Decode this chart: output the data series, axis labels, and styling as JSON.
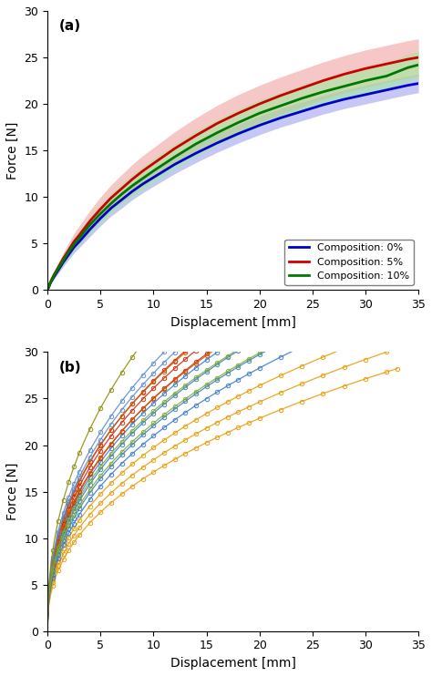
{
  "title_a": "(a)",
  "title_b": "(b)",
  "xlabel": "Displacement [mm]",
  "ylabel": "Force [N]",
  "xlim": [
    0,
    35
  ],
  "ylim": [
    0,
    30
  ],
  "xticks": [
    0,
    5,
    10,
    15,
    20,
    25,
    30,
    35
  ],
  "yticks": [
    0,
    5,
    10,
    15,
    20,
    25,
    30
  ],
  "legend_labels": [
    "Composition: 0%",
    "Composition: 5%",
    "Composition: 10%"
  ],
  "mean_colors": [
    "#0000cc",
    "#cc0000",
    "#007700"
  ],
  "fill_colors": [
    "#9999ee",
    "#ee9999",
    "#99ee99"
  ],
  "curve_a": {
    "x": [
      0,
      0.3,
      0.6,
      1.0,
      1.5,
      2.0,
      2.5,
      3.0,
      4.0,
      5.0,
      6.0,
      7.0,
      8.0,
      9.0,
      10.0,
      12.0,
      14.0,
      16.0,
      18.0,
      20.0,
      22.0,
      24.0,
      26.0,
      28.0,
      30.0,
      32.0,
      34.0,
      35.0
    ],
    "mean_0": [
      0,
      0.8,
      1.4,
      2.1,
      3.0,
      3.8,
      4.6,
      5.2,
      6.5,
      7.7,
      8.8,
      9.7,
      10.6,
      11.4,
      12.1,
      13.5,
      14.7,
      15.8,
      16.8,
      17.7,
      18.5,
      19.2,
      19.9,
      20.5,
      21.0,
      21.5,
      22.0,
      22.2
    ],
    "std_0": [
      0,
      0.15,
      0.25,
      0.35,
      0.45,
      0.55,
      0.6,
      0.65,
      0.75,
      0.8,
      0.85,
      0.9,
      0.9,
      0.95,
      0.95,
      1.0,
      1.0,
      1.0,
      1.0,
      1.0,
      1.0,
      1.0,
      1.0,
      1.0,
      1.0,
      1.0,
      1.0,
      1.0
    ],
    "mean_5": [
      0,
      0.9,
      1.6,
      2.4,
      3.4,
      4.3,
      5.2,
      5.9,
      7.4,
      8.7,
      9.9,
      10.9,
      11.9,
      12.8,
      13.6,
      15.2,
      16.6,
      17.9,
      19.0,
      20.0,
      20.9,
      21.7,
      22.5,
      23.2,
      23.8,
      24.3,
      24.8,
      25.0
    ],
    "std_5": [
      0,
      0.2,
      0.35,
      0.5,
      0.65,
      0.8,
      0.9,
      1.0,
      1.15,
      1.3,
      1.4,
      1.5,
      1.6,
      1.65,
      1.7,
      1.8,
      1.9,
      1.95,
      2.0,
      2.0,
      2.0,
      2.0,
      2.0,
      2.0,
      2.0,
      2.0,
      2.0,
      2.0
    ],
    "mean_10": [
      0,
      0.85,
      1.55,
      2.3,
      3.2,
      4.1,
      4.9,
      5.6,
      7.0,
      8.2,
      9.3,
      10.3,
      11.2,
      12.0,
      12.8,
      14.3,
      15.7,
      16.9,
      18.0,
      19.0,
      19.8,
      20.6,
      21.3,
      21.9,
      22.5,
      23.0,
      23.9,
      24.2
    ],
    "std_10": [
      0,
      0.15,
      0.3,
      0.4,
      0.55,
      0.65,
      0.75,
      0.8,
      0.95,
      1.05,
      1.1,
      1.15,
      1.2,
      1.25,
      1.3,
      1.35,
      1.4,
      1.4,
      1.45,
      1.45,
      1.45,
      1.45,
      1.45,
      1.45,
      1.45,
      1.45,
      1.45,
      1.45
    ]
  },
  "individual_curves": [
    {
      "color": "#e69900",
      "a": 6.5,
      "b": 0.42,
      "xmax": 33
    },
    {
      "color": "#e69900",
      "a": 7.0,
      "b": 0.42,
      "xmax": 33
    },
    {
      "color": "#e69900",
      "a": 7.5,
      "b": 0.42,
      "xmax": 33
    },
    {
      "color": "#3377cc",
      "a": 7.8,
      "b": 0.43,
      "xmax": 33
    },
    {
      "color": "#3377cc",
      "a": 8.2,
      "b": 0.43,
      "xmax": 33
    },
    {
      "color": "#3377cc",
      "a": 8.7,
      "b": 0.43,
      "xmax": 33
    },
    {
      "color": "#3377cc",
      "a": 9.1,
      "b": 0.43,
      "xmax": 33
    },
    {
      "color": "#cc2200",
      "a": 9.3,
      "b": 0.43,
      "xmax": 33
    },
    {
      "color": "#cc2200",
      "a": 9.7,
      "b": 0.43,
      "xmax": 33
    },
    {
      "color": "#cc2200",
      "a": 10.0,
      "b": 0.43,
      "xmax": 33
    },
    {
      "color": "#cc5500",
      "a": 9.5,
      "b": 0.42,
      "xmax": 33
    },
    {
      "color": "#cc5500",
      "a": 10.2,
      "b": 0.42,
      "xmax": 33
    },
    {
      "color": "#5588cc",
      "a": 10.3,
      "b": 0.43,
      "xmax": 33
    },
    {
      "color": "#5588cc",
      "a": 10.7,
      "b": 0.43,
      "xmax": 33
    },
    {
      "color": "#77aa33",
      "a": 8.5,
      "b": 0.42,
      "xmax": 33
    },
    {
      "color": "#77aa33",
      "a": 9.0,
      "b": 0.42,
      "xmax": 33
    },
    {
      "color": "#888800",
      "a": 11.8,
      "b": 0.44,
      "xmax": 33
    }
  ],
  "figsize": [
    4.74,
    7.42
  ],
  "dpi": 100
}
